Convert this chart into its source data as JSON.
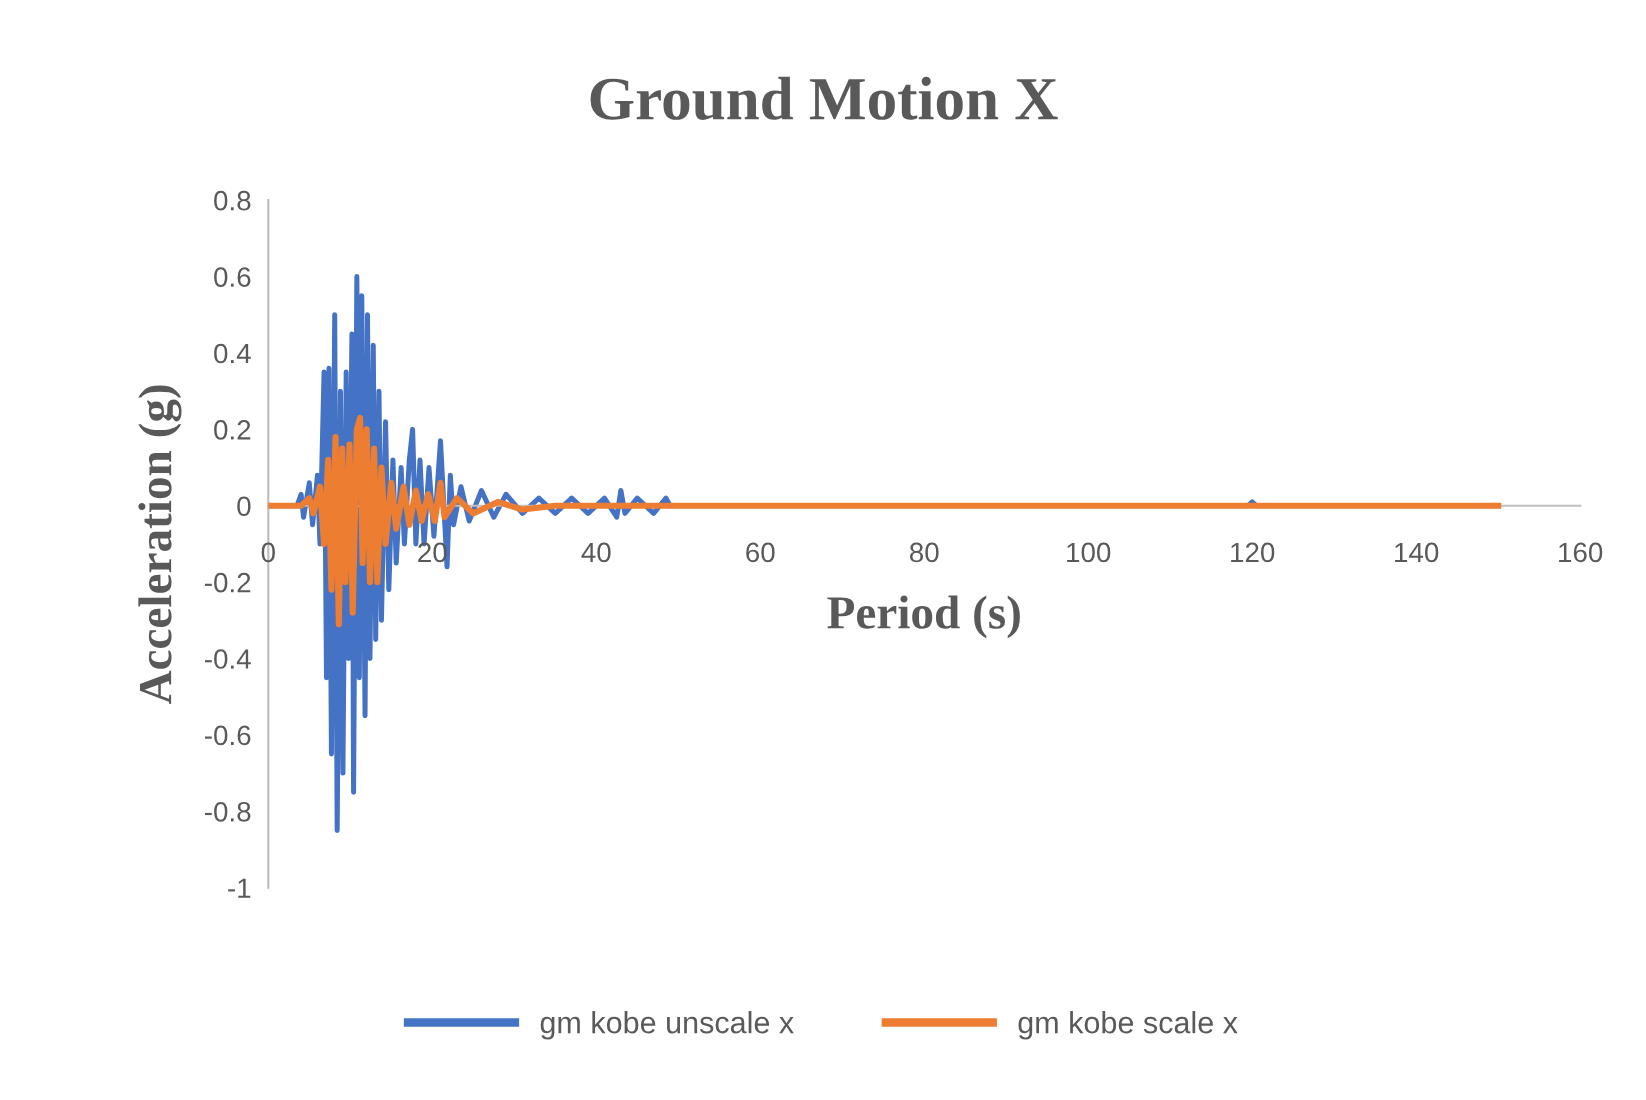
{
  "chart_data": {
    "type": "line",
    "title": "Ground Motion X",
    "xlabel": "Period (s)",
    "ylabel": "Acceleration (g)",
    "xlim": [
      0,
      160
    ],
    "xticks": [
      0,
      20,
      40,
      60,
      80,
      100,
      120,
      140,
      160
    ],
    "ylim": [
      -1,
      0.8
    ],
    "yticks": [
      -1,
      -0.8,
      -0.6,
      -0.4,
      -0.2,
      0,
      0.2,
      0.4,
      0.6,
      0.8
    ],
    "grid": false,
    "legend": "bottom",
    "marker": "none",
    "line_style": "solid",
    "series": [
      {
        "name": "gm kobe unscale x",
        "color": "#4472c4",
        "x": [
          0,
          3.5,
          4,
          4.3,
          5,
          5.4,
          6,
          6.3,
          6.8,
          7.1,
          7.4,
          7.7,
          8.1,
          8.4,
          8.8,
          9.1,
          9.5,
          9.8,
          10.2,
          10.4,
          10.8,
          11.1,
          11.4,
          11.8,
          12.1,
          12.4,
          12.8,
          13.1,
          13.5,
          13.8,
          14.3,
          14.7,
          15.2,
          15.6,
          16.2,
          16.6,
          17.2,
          17.6,
          18,
          18.5,
          19,
          19.6,
          20.2,
          21,
          21.8,
          22.2,
          22.6,
          23.5,
          24.5,
          26,
          27.5,
          29,
          31,
          33,
          35,
          37,
          39,
          41,
          42.5,
          43,
          43.5,
          45,
          47,
          48.5,
          49,
          119.5,
          120,
          120.5,
          150
        ],
        "values": [
          0,
          0,
          0.03,
          -0.03,
          0.06,
          -0.05,
          0.08,
          -0.1,
          0.35,
          -0.45,
          0.36,
          -0.65,
          0.5,
          -0.85,
          0.3,
          -0.7,
          0.35,
          -0.4,
          0.45,
          -0.75,
          0.6,
          -0.45,
          0.55,
          -0.55,
          0.5,
          -0.4,
          0.42,
          -0.35,
          0.3,
          -0.3,
          0.22,
          -0.22,
          0.12,
          -0.15,
          0.1,
          -0.1,
          0.12,
          0.2,
          -0.1,
          0.12,
          -0.1,
          0.1,
          -0.08,
          0.17,
          -0.16,
          0.08,
          -0.05,
          0.05,
          -0.04,
          0.04,
          -0.03,
          0.03,
          -0.02,
          0.02,
          -0.02,
          0.02,
          -0.02,
          0.02,
          -0.03,
          0.04,
          -0.02,
          0.02,
          -0.02,
          0.02,
          0,
          0,
          0.01,
          0,
          0
        ]
      },
      {
        "name": "gm kobe scale x",
        "color": "#ed7d31",
        "x": [
          0,
          4,
          5,
          5.5,
          6.3,
          6.8,
          7.3,
          7.7,
          8.2,
          8.6,
          9,
          9.4,
          9.9,
          10.3,
          10.8,
          11.2,
          11.5,
          12,
          12.4,
          12.9,
          13.3,
          13.8,
          14.3,
          15,
          15.6,
          16.5,
          17.2,
          18,
          18.7,
          19.5,
          20.3,
          21,
          21.5,
          23,
          25,
          28,
          31,
          35,
          150
        ],
        "values": [
          0,
          0,
          0.02,
          -0.02,
          0.05,
          -0.1,
          0.12,
          -0.22,
          0.18,
          -0.31,
          0.15,
          -0.2,
          0.16,
          -0.28,
          0.2,
          0.23,
          -0.15,
          0.2,
          -0.2,
          0.15,
          -0.2,
          0.1,
          -0.1,
          0.06,
          -0.06,
          0.05,
          -0.05,
          0.04,
          -0.04,
          0.03,
          -0.04,
          0.06,
          -0.03,
          0.02,
          -0.02,
          0.01,
          -0.01,
          0,
          0
        ]
      }
    ]
  }
}
